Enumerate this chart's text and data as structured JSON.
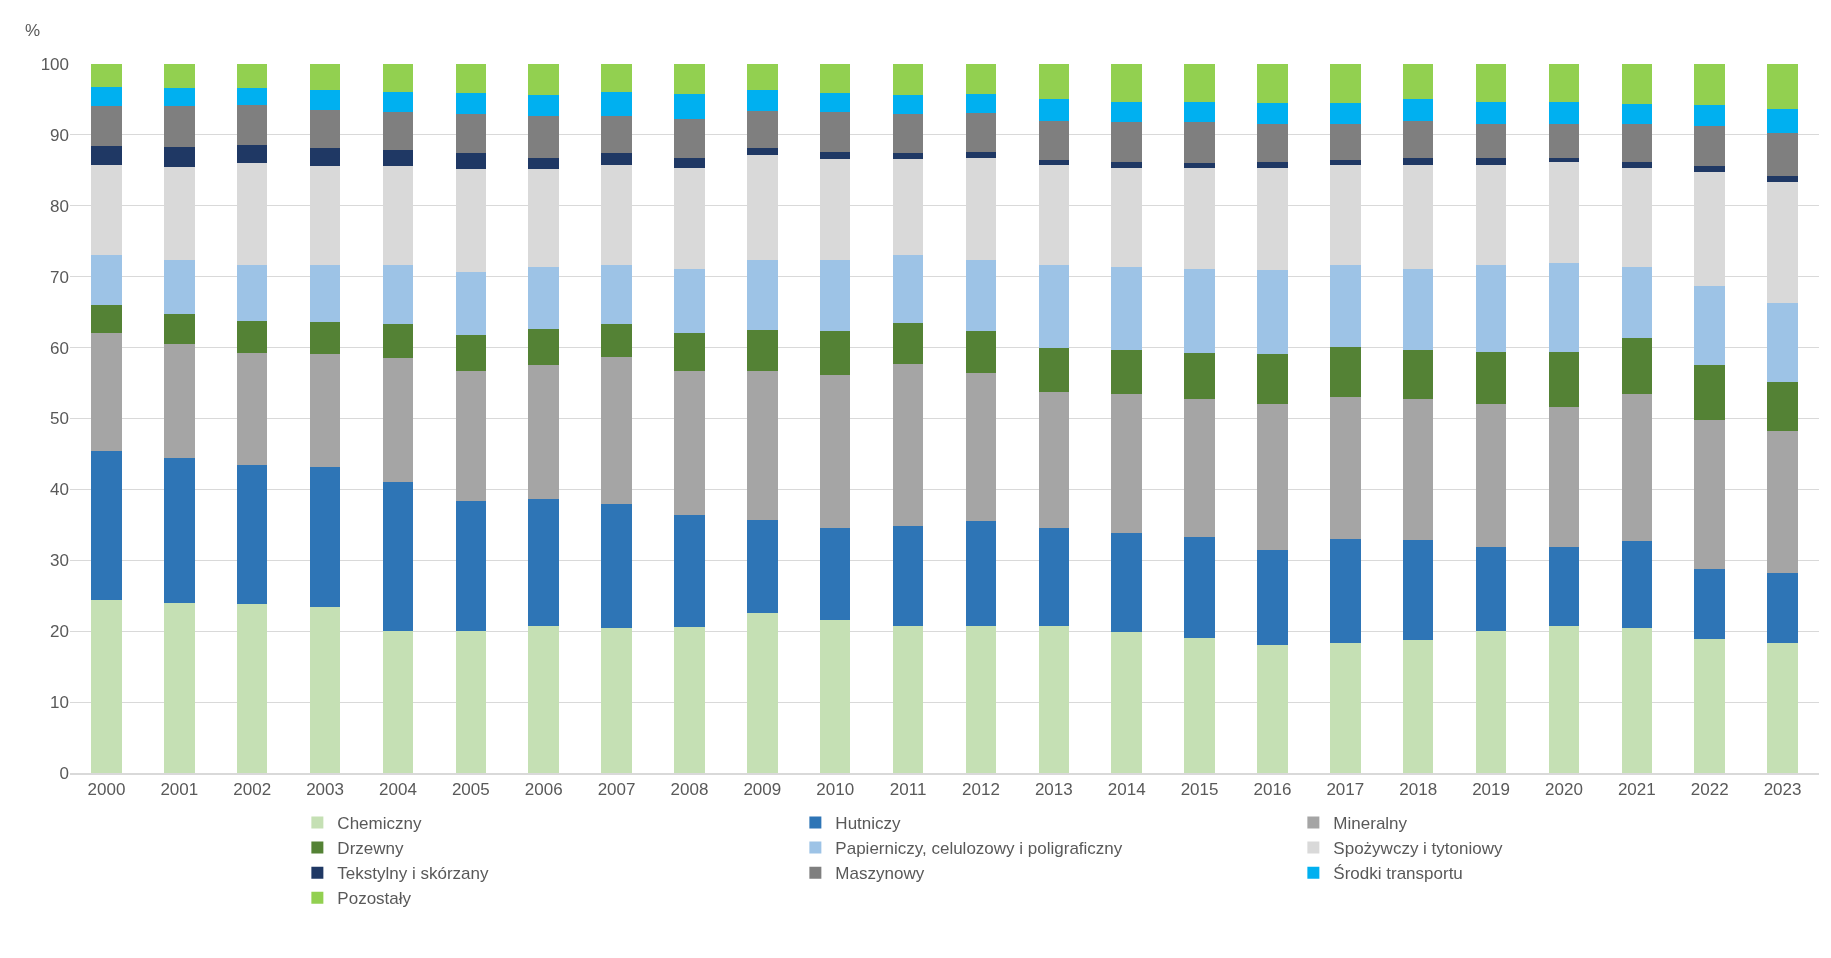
{
  "chart_data": {
    "type": "bar",
    "stacked": true,
    "ylabel": "%",
    "categories": [
      "2000",
      "2001",
      "2002",
      "2003",
      "2004",
      "2005",
      "2006",
      "2007",
      "2008",
      "2009",
      "2010",
      "2011",
      "2012",
      "2013",
      "2014",
      "2015",
      "2016",
      "2017",
      "2018",
      "2019",
      "2020",
      "2021",
      "2022",
      "2023"
    ],
    "ylim": [
      0,
      100
    ],
    "yticks": [
      0,
      10,
      20,
      30,
      40,
      50,
      60,
      70,
      80,
      90,
      100
    ],
    "grid": "y",
    "legend": "bottom",
    "series": [
      {
        "name": "Chemiczny",
        "color": "#c5e0b4",
        "values": [
          24.4,
          24.0,
          23.9,
          23.4,
          20.0,
          20.0,
          20.8,
          20.4,
          20.6,
          22.6,
          21.6,
          20.7,
          20.7,
          20.7,
          19.9,
          19.1,
          18.1,
          18.4,
          18.8,
          20.0,
          20.7,
          20.5,
          18.9,
          18.3
        ]
      },
      {
        "name": "Hutniczy",
        "color": "#2e75b6",
        "values": [
          21.0,
          20.4,
          19.5,
          19.7,
          21.0,
          18.3,
          17.9,
          17.6,
          15.8,
          13.1,
          13.0,
          14.1,
          14.8,
          13.9,
          13.9,
          14.2,
          13.4,
          14.6,
          14.0,
          11.9,
          11.2,
          12.2,
          9.9,
          9.9
        ]
      },
      {
        "name": "Mineralny",
        "color": "#a5a5a5",
        "values": [
          16.7,
          16.1,
          15.9,
          16.0,
          17.5,
          18.4,
          18.8,
          20.7,
          20.3,
          21.0,
          21.6,
          22.9,
          20.9,
          19.1,
          19.7,
          19.4,
          20.6,
          20.0,
          20.0,
          20.2,
          19.7,
          20.8,
          21.0,
          20.0
        ]
      },
      {
        "name": "Drzewny",
        "color": "#548235",
        "values": [
          3.9,
          4.2,
          4.4,
          4.5,
          4.8,
          5.1,
          5.1,
          4.6,
          5.4,
          5.8,
          6.1,
          5.7,
          5.9,
          6.2,
          6.2,
          6.6,
          7.0,
          7.1,
          6.8,
          7.3,
          7.8,
          7.8,
          7.7,
          6.9
        ]
      },
      {
        "name": "Papierniczy, celulozowy i poligraficzny",
        "color": "#9dc3e6",
        "values": [
          7.1,
          7.6,
          8.0,
          8.1,
          8.4,
          8.9,
          8.8,
          8.4,
          9.0,
          9.9,
          10.1,
          9.7,
          10.0,
          11.8,
          11.6,
          11.8,
          11.9,
          11.6,
          11.5,
          12.2,
          12.5,
          10.1,
          11.2,
          11.2
        ]
      },
      {
        "name": "Spożywczy i tytoniowy",
        "color": "#d9d9d9",
        "values": [
          12.7,
          13.2,
          14.3,
          13.9,
          13.9,
          14.5,
          13.8,
          14.1,
          14.3,
          14.8,
          14.2,
          13.5,
          14.5,
          14.0,
          14.1,
          14.3,
          14.3,
          14.0,
          14.7,
          14.2,
          14.3,
          14.0,
          16.0,
          17.0
        ]
      },
      {
        "name": "Tekstylny i skórzany",
        "color": "#1f3864",
        "values": [
          2.6,
          2.8,
          2.6,
          2.5,
          2.3,
          2.2,
          1.6,
          1.6,
          1.3,
          1.0,
          1.0,
          0.9,
          0.8,
          0.7,
          0.8,
          0.7,
          0.9,
          0.7,
          0.9,
          0.9,
          0.6,
          0.8,
          0.9,
          0.9
        ]
      },
      {
        "name": "Maszynowy",
        "color": "#7f7f7f",
        "values": [
          5.7,
          5.8,
          5.6,
          5.4,
          5.4,
          5.5,
          5.8,
          5.3,
          5.6,
          5.2,
          5.7,
          5.4,
          5.5,
          5.6,
          5.6,
          5.7,
          5.3,
          5.2,
          5.2,
          4.9,
          4.8,
          5.4,
          5.6,
          6.0
        ]
      },
      {
        "name": "Środki transportu",
        "color": "#00b0f0",
        "values": [
          2.7,
          2.5,
          2.4,
          2.8,
          2.8,
          3.0,
          3.0,
          3.3,
          3.5,
          2.9,
          2.6,
          2.7,
          2.7,
          3.0,
          2.9,
          2.9,
          3.0,
          2.9,
          3.1,
          3.1,
          3.1,
          2.7,
          3.0,
          3.5
        ]
      },
      {
        "name": "Pozostały",
        "color": "#92d050",
        "values": [
          3.2,
          3.4,
          3.4,
          3.7,
          3.9,
          4.1,
          4.4,
          4.0,
          4.2,
          3.7,
          4.1,
          4.4,
          4.2,
          5.0,
          5.3,
          5.3,
          5.5,
          5.5,
          5.0,
          5.3,
          5.3,
          5.7,
          5.8,
          6.3
        ]
      }
    ]
  }
}
